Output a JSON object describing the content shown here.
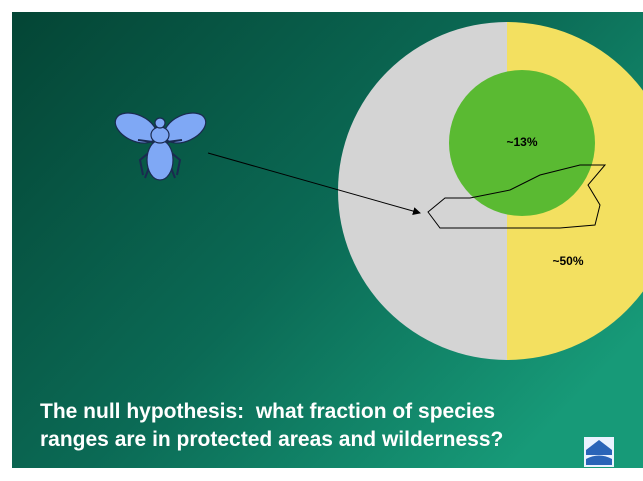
{
  "slide": {
    "labels": [
      "~13%",
      "~50%"
    ],
    "caption": [
      "The null hypothesis:  what fraction of species",
      "ranges are in protected areas and wilderness?"
    ]
  }
}
